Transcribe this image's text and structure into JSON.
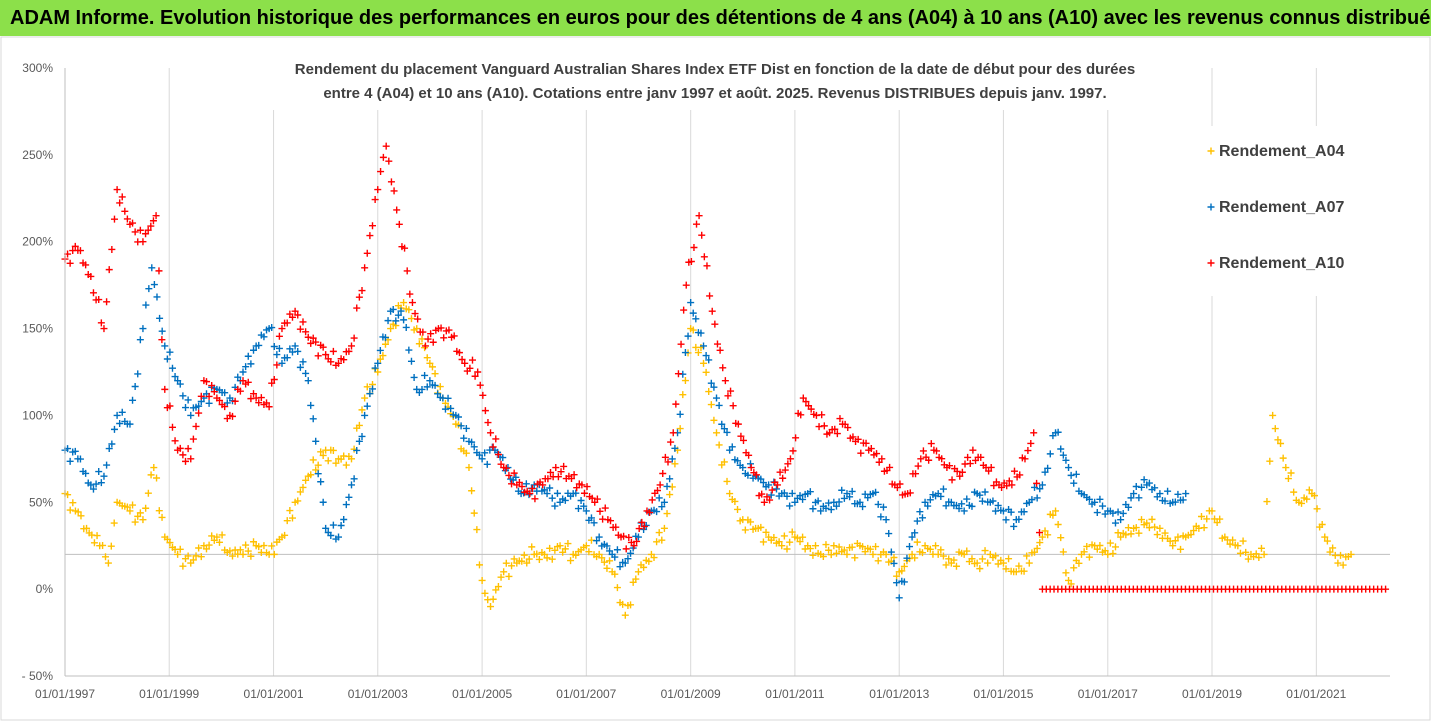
{
  "banner": {
    "text": "ADAM Informe. Evolution historique des performances en euros pour des détentions de 4 ans (A04) à 10 ans (A10) avec les revenus connus distribués"
  },
  "chart_data": {
    "type": "scatter",
    "title_line1": "Rendement du placement Vanguard Australian Shares Index ETF Dist en fonction de la date de début pour des durées",
    "title_line2": "entre 4 (A04) et 10 ans (A10). Cotations entre janv 1997 et août. 2025. Revenus DISTRIBUES depuis janv. 1997.",
    "xlabel": "",
    "ylabel": "",
    "x_range": [
      "1997-01-01",
      "2022-06-01"
    ],
    "y_range": [
      -50,
      300
    ],
    "y_ticks": [
      -50,
      0,
      50,
      100,
      150,
      200,
      250,
      300
    ],
    "y_tick_labels": [
      "- 50%",
      "0%",
      "50%",
      "100%",
      "150%",
      "200%",
      "250%",
      "300%"
    ],
    "x_ticks": [
      "1997-01-01",
      "1999-01-01",
      "2001-01-01",
      "2003-01-01",
      "2005-01-01",
      "2007-01-01",
      "2009-01-01",
      "2011-01-01",
      "2013-01-01",
      "2015-01-01",
      "2017-01-01",
      "2019-01-01",
      "2021-01-01"
    ],
    "x_tick_labels": [
      "01/01/1997",
      "01/01/1999",
      "01/01/2001",
      "01/01/2003",
      "01/01/2005",
      "01/01/2007",
      "01/01/2009",
      "01/01/2011",
      "01/01/2013",
      "01/01/2015",
      "01/01/2017",
      "01/01/2019",
      "01/01/2021"
    ],
    "reference_line": 20,
    "grid": "vertical",
    "legend_position": "right",
    "marker": "+",
    "series": [
      {
        "name": "Rendement_A04",
        "color": "#ffc000",
        "points": [
          [
            "1997-01-01",
            55
          ],
          [
            "1997-03-15",
            45
          ],
          [
            "1997-06-01",
            35
          ],
          [
            "1997-09-01",
            25
          ],
          [
            "1997-11-01",
            15
          ],
          [
            "1998-01-01",
            50
          ],
          [
            "1998-04-01",
            45
          ],
          [
            "1998-07-01",
            40
          ],
          [
            "1998-09-15",
            70
          ],
          [
            "1998-12-01",
            30
          ],
          [
            "1999-03-01",
            20
          ],
          [
            "1999-06-01",
            15
          ],
          [
            "1999-09-01",
            25
          ],
          [
            "1999-12-01",
            30
          ],
          [
            "2000-03-01",
            22
          ],
          [
            "2000-06-01",
            20
          ],
          [
            "2000-09-01",
            25
          ],
          [
            "2000-12-01",
            20
          ],
          [
            "2001-03-01",
            30
          ],
          [
            "2001-06-01",
            50
          ],
          [
            "2001-09-01",
            65
          ],
          [
            "2002-01-01",
            80
          ],
          [
            "2002-04-01",
            75
          ],
          [
            "2002-07-01",
            75
          ],
          [
            "2002-10-01",
            110
          ],
          [
            "2003-01-01",
            125
          ],
          [
            "2003-04-01",
            150
          ],
          [
            "2003-07-01",
            165
          ],
          [
            "2003-10-01",
            150
          ],
          [
            "2004-01-01",
            130
          ],
          [
            "2004-04-01",
            110
          ],
          [
            "2004-07-01",
            95
          ],
          [
            "2004-10-01",
            70
          ],
          [
            "2005-01-01",
            5
          ],
          [
            "2005-03-01",
            -10
          ],
          [
            "2005-06-01",
            10
          ],
          [
            "2005-09-01",
            15
          ],
          [
            "2006-01-01",
            20
          ],
          [
            "2006-04-01",
            18
          ],
          [
            "2006-07-01",
            25
          ],
          [
            "2006-10-01",
            20
          ],
          [
            "2007-01-01",
            25
          ],
          [
            "2007-04-01",
            20
          ],
          [
            "2007-07-01",
            10
          ],
          [
            "2007-10-01",
            -15
          ],
          [
            "2008-01-01",
            10
          ],
          [
            "2008-04-01",
            20
          ],
          [
            "2008-07-01",
            35
          ],
          [
            "2008-10-01",
            80
          ],
          [
            "2009-01-01",
            150
          ],
          [
            "2009-04-01",
            130
          ],
          [
            "2009-07-01",
            90
          ],
          [
            "2009-10-01",
            55
          ],
          [
            "2010-01-01",
            40
          ],
          [
            "2010-04-01",
            35
          ],
          [
            "2010-07-01",
            30
          ],
          [
            "2010-10-01",
            25
          ],
          [
            "2011-01-01",
            30
          ],
          [
            "2011-04-01",
            25
          ],
          [
            "2011-07-01",
            20
          ],
          [
            "2011-10-01",
            25
          ],
          [
            "2012-01-01",
            20
          ],
          [
            "2012-04-01",
            25
          ],
          [
            "2012-07-01",
            20
          ],
          [
            "2012-10-01",
            20
          ],
          [
            "2013-01-01",
            10
          ],
          [
            "2013-04-01",
            20
          ],
          [
            "2013-07-01",
            25
          ],
          [
            "2013-10-01",
            20
          ],
          [
            "2014-01-01",
            15
          ],
          [
            "2014-04-01",
            20
          ],
          [
            "2014-07-01",
            15
          ],
          [
            "2014-10-01",
            20
          ],
          [
            "2015-01-01",
            15
          ],
          [
            "2015-04-01",
            10
          ],
          [
            "2015-07-01",
            15
          ],
          [
            "2015-10-01",
            30
          ],
          [
            "2016-01-01",
            45
          ],
          [
            "2016-04-01",
            5
          ],
          [
            "2016-07-01",
            20
          ],
          [
            "2016-10-01",
            25
          ],
          [
            "2017-01-01",
            20
          ],
          [
            "2017-04-01",
            30
          ],
          [
            "2017-07-01",
            35
          ],
          [
            "2017-10-01",
            38
          ],
          [
            "2018-01-01",
            35
          ],
          [
            "2018-04-01",
            25
          ],
          [
            "2018-07-01",
            30
          ],
          [
            "2018-10-01",
            35
          ],
          [
            "2019-01-01",
            45
          ],
          [
            "2019-04-01",
            30
          ],
          [
            "2019-07-01",
            25
          ],
          [
            "2019-10-01",
            20
          ],
          [
            "2020-01-01",
            20
          ],
          [
            "2020-03-01",
            100
          ],
          [
            "2020-06-01",
            70
          ],
          [
            "2020-09-01",
            50
          ],
          [
            "2020-12-01",
            55
          ],
          [
            "2021-03-01",
            30
          ],
          [
            "2021-06-01",
            15
          ],
          [
            "2021-09-01",
            20
          ]
        ]
      },
      {
        "name": "Rendement_A07",
        "color": "#0070c0",
        "points": [
          [
            "1997-01-01",
            80
          ],
          [
            "1997-04-01",
            75
          ],
          [
            "1997-07-01",
            60
          ],
          [
            "1997-10-01",
            65
          ],
          [
            "1998-01-01",
            100
          ],
          [
            "1998-04-01",
            95
          ],
          [
            "1998-07-01",
            150
          ],
          [
            "1998-09-01",
            185
          ],
          [
            "1998-12-01",
            140
          ],
          [
            "1999-03-01",
            120
          ],
          [
            "1999-06-01",
            100
          ],
          [
            "1999-09-01",
            110
          ],
          [
            "1999-12-01",
            115
          ],
          [
            "2000-03-01",
            110
          ],
          [
            "2000-06-01",
            125
          ],
          [
            "2000-09-01",
            140
          ],
          [
            "2000-12-01",
            150
          ],
          [
            "2001-03-01",
            130
          ],
          [
            "2001-06-01",
            140
          ],
          [
            "2001-09-01",
            120
          ],
          [
            "2002-01-01",
            35
          ],
          [
            "2002-04-01",
            30
          ],
          [
            "2002-07-01",
            60
          ],
          [
            "2002-10-01",
            100
          ],
          [
            "2003-01-01",
            130
          ],
          [
            "2003-04-01",
            160
          ],
          [
            "2003-07-01",
            155
          ],
          [
            "2003-10-01",
            115
          ],
          [
            "2004-01-01",
            120
          ],
          [
            "2004-04-01",
            110
          ],
          [
            "2004-07-01",
            100
          ],
          [
            "2004-10-01",
            85
          ],
          [
            "2005-01-01",
            75
          ],
          [
            "2005-04-01",
            80
          ],
          [
            "2005-07-01",
            70
          ],
          [
            "2005-10-01",
            55
          ],
          [
            "2006-01-01",
            60
          ],
          [
            "2006-04-01",
            55
          ],
          [
            "2006-07-01",
            50
          ],
          [
            "2006-10-01",
            55
          ],
          [
            "2007-01-01",
            45
          ],
          [
            "2007-04-01",
            30
          ],
          [
            "2007-07-01",
            20
          ],
          [
            "2007-10-01",
            15
          ],
          [
            "2008-01-01",
            30
          ],
          [
            "2008-04-01",
            45
          ],
          [
            "2008-07-01",
            50
          ],
          [
            "2008-10-01",
            90
          ],
          [
            "2009-01-01",
            165
          ],
          [
            "2009-04-01",
            140
          ],
          [
            "2009-07-01",
            110
          ],
          [
            "2009-10-01",
            80
          ],
          [
            "2010-01-01",
            70
          ],
          [
            "2010-04-01",
            65
          ],
          [
            "2010-07-01",
            60
          ],
          [
            "2010-10-01",
            55
          ],
          [
            "2011-01-01",
            50
          ],
          [
            "2011-04-01",
            55
          ],
          [
            "2011-07-01",
            45
          ],
          [
            "2011-10-01",
            50
          ],
          [
            "2012-01-01",
            55
          ],
          [
            "2012-04-01",
            50
          ],
          [
            "2012-07-01",
            55
          ],
          [
            "2012-10-01",
            40
          ],
          [
            "2013-01-01",
            -5
          ],
          [
            "2013-04-01",
            30
          ],
          [
            "2013-07-01",
            50
          ],
          [
            "2013-10-01",
            55
          ],
          [
            "2014-01-01",
            50
          ],
          [
            "2014-04-01",
            45
          ],
          [
            "2014-07-01",
            55
          ],
          [
            "2014-10-01",
            50
          ],
          [
            "2015-01-01",
            45
          ],
          [
            "2015-04-01",
            40
          ],
          [
            "2015-07-01",
            50
          ],
          [
            "2015-10-01",
            60
          ],
          [
            "2016-01-01",
            90
          ],
          [
            "2016-04-01",
            70
          ],
          [
            "2016-07-01",
            55
          ],
          [
            "2016-10-01",
            50
          ],
          [
            "2017-01-01",
            45
          ],
          [
            "2017-04-01",
            40
          ],
          [
            "2017-07-01",
            55
          ],
          [
            "2017-10-01",
            60
          ],
          [
            "2018-01-01",
            55
          ],
          [
            "2018-04-01",
            50
          ],
          [
            "2018-07-01",
            55
          ]
        ]
      },
      {
        "name": "Rendement_A10",
        "color": "#ff0000",
        "points": [
          [
            "1997-01-01",
            190
          ],
          [
            "1997-04-01",
            195
          ],
          [
            "1997-07-01",
            180
          ],
          [
            "1997-10-01",
            150
          ],
          [
            "1998-01-01",
            230
          ],
          [
            "1998-04-01",
            210
          ],
          [
            "1998-07-01",
            200
          ],
          [
            "1998-10-01",
            215
          ],
          [
            "1998-12-01",
            115
          ],
          [
            "1999-03-01",
            80
          ],
          [
            "1999-06-01",
            75
          ],
          [
            "1999-09-01",
            120
          ],
          [
            "1999-12-01",
            110
          ],
          [
            "2000-03-01",
            100
          ],
          [
            "2000-06-01",
            120
          ],
          [
            "2000-09-01",
            110
          ],
          [
            "2000-12-01",
            105
          ],
          [
            "2001-03-01",
            150
          ],
          [
            "2001-06-01",
            160
          ],
          [
            "2001-09-01",
            145
          ],
          [
            "2002-01-01",
            135
          ],
          [
            "2002-04-01",
            130
          ],
          [
            "2002-07-01",
            140
          ],
          [
            "2002-10-01",
            185
          ],
          [
            "2003-01-01",
            230
          ],
          [
            "2003-03-01",
            255
          ],
          [
            "2003-06-01",
            210
          ],
          [
            "2003-09-01",
            165
          ],
          [
            "2003-12-01",
            140
          ],
          [
            "2004-03-01",
            150
          ],
          [
            "2004-06-01",
            145
          ],
          [
            "2004-09-01",
            130
          ],
          [
            "2004-12-01",
            125
          ],
          [
            "2005-03-01",
            90
          ],
          [
            "2005-06-01",
            70
          ],
          [
            "2005-09-01",
            60
          ],
          [
            "2005-12-01",
            55
          ],
          [
            "2006-03-01",
            60
          ],
          [
            "2006-06-01",
            70
          ],
          [
            "2006-09-01",
            65
          ],
          [
            "2006-12-01",
            60
          ],
          [
            "2007-03-01",
            50
          ],
          [
            "2007-06-01",
            40
          ],
          [
            "2007-09-01",
            30
          ],
          [
            "2007-12-01",
            25
          ],
          [
            "2008-03-01",
            45
          ],
          [
            "2008-06-01",
            60
          ],
          [
            "2008-09-01",
            90
          ],
          [
            "2008-12-01",
            175
          ],
          [
            "2009-03-01",
            215
          ],
          [
            "2009-06-01",
            160
          ],
          [
            "2009-09-01",
            120
          ],
          [
            "2009-12-01",
            95
          ],
          [
            "2010-03-01",
            70
          ],
          [
            "2010-06-01",
            50
          ],
          [
            "2010-09-01",
            60
          ],
          [
            "2010-12-01",
            75
          ],
          [
            "2011-03-01",
            110
          ],
          [
            "2011-06-01",
            100
          ],
          [
            "2011-09-01",
            90
          ],
          [
            "2011-12-01",
            95
          ],
          [
            "2012-03-01",
            85
          ],
          [
            "2012-06-01",
            80
          ],
          [
            "2012-09-01",
            75
          ],
          [
            "2012-12-01",
            60
          ],
          [
            "2013-03-01",
            55
          ],
          [
            "2013-06-01",
            75
          ],
          [
            "2013-09-01",
            80
          ],
          [
            "2013-12-01",
            70
          ],
          [
            "2014-03-01",
            65
          ],
          [
            "2014-06-01",
            80
          ],
          [
            "2014-09-01",
            70
          ],
          [
            "2014-12-01",
            60
          ],
          [
            "2015-03-01",
            60
          ],
          [
            "2015-06-01",
            75
          ],
          [
            "2015-08-01",
            90
          ],
          [
            "2015-10-01",
            0
          ],
          [
            "2016-06-01",
            0
          ],
          [
            "2017-06-01",
            0
          ],
          [
            "2018-06-01",
            0
          ],
          [
            "2019-06-01",
            0
          ],
          [
            "2020-06-01",
            0
          ],
          [
            "2021-06-01",
            0
          ],
          [
            "2022-05-01",
            0
          ]
        ]
      }
    ]
  }
}
